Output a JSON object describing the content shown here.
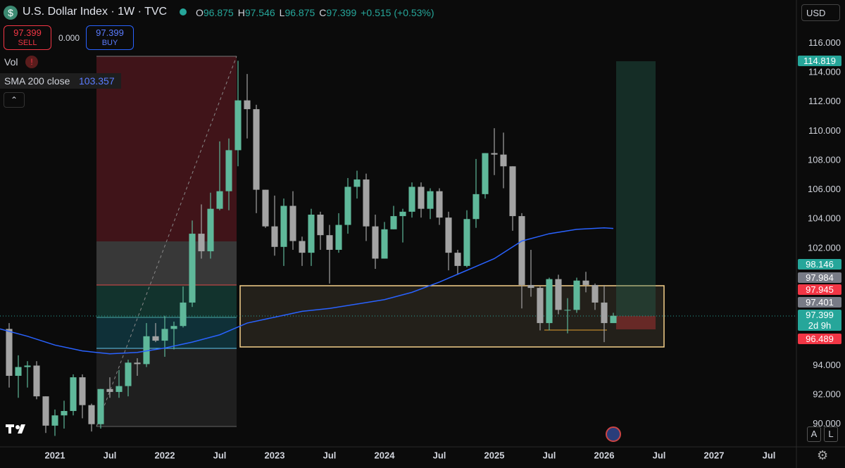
{
  "header": {
    "symbol": "U.S. Dollar Index · 1W · TVC",
    "icon": "$",
    "ohlc": [
      {
        "label": "O",
        "value": "96.875"
      },
      {
        "label": "H",
        "value": "97.546"
      },
      {
        "label": "L",
        "value": "96.875"
      },
      {
        "label": "C",
        "value": "97.399"
      }
    ],
    "change": "+0.515 (+0.53%)",
    "sell": {
      "price": "97.399",
      "label": "SELL"
    },
    "spread": "0.000",
    "buy": {
      "price": "97.399",
      "label": "BUY"
    },
    "vol": "Vol",
    "vol_alert": "!",
    "indicator": {
      "name": "SMA 200 close",
      "value": "103.357"
    },
    "currency": "USD"
  },
  "price_tags": [
    {
      "label": "114.819",
      "color": "#26a69a"
    },
    {
      "label": "98.146",
      "color": "#26a69a"
    },
    {
      "label": "97.984",
      "color": "#787b86"
    },
    {
      "label": "97.945",
      "color": "#f23645"
    },
    {
      "label": "97.401",
      "color": "#787b86"
    },
    {
      "label": "97.399",
      "sub": "2d 9h",
      "color": "#26a69a"
    },
    {
      "label": "96.489",
      "color": "#f23645"
    }
  ],
  "footer": {
    "buttons": [
      "A",
      "L"
    ]
  },
  "chart_data": {
    "type": "candlestick",
    "up_color": "#5fb89a",
    "down_color": "#a3a3a3",
    "x": [
      "2020-08",
      "2020-09",
      "2020-10",
      "2020-11",
      "2020-12",
      "2021-01",
      "2021-02",
      "2021-03",
      "2021-04",
      "2021-05",
      "2021-06",
      "2021-07",
      "2021-08",
      "2021-09",
      "2021-10",
      "2021-11",
      "2021-12",
      "2022-01",
      "2022-02",
      "2022-03",
      "2022-04",
      "2022-05",
      "2022-06",
      "2022-07",
      "2022-08",
      "2022-09",
      "2022-10",
      "2022-11",
      "2022-12",
      "2023-01",
      "2023-02",
      "2023-03",
      "2023-04",
      "2023-05",
      "2023-06",
      "2023-07",
      "2023-08",
      "2023-09",
      "2023-10",
      "2023-11",
      "2023-12",
      "2024-01",
      "2024-02",
      "2024-03",
      "2024-04",
      "2024-05",
      "2024-06",
      "2024-07",
      "2024-08",
      "2024-09",
      "2024-10",
      "2024-11",
      "2024-12",
      "2025-01",
      "2025-02",
      "2025-03",
      "2025-04",
      "2025-05",
      "2025-06",
      "2025-07",
      "2025-08",
      "2025-09",
      "2025-10",
      "2025-11",
      "2025-12",
      "2026-01",
      "2026-02"
    ],
    "open": [
      96.5,
      93.3,
      93.9,
      94.0,
      91.9,
      89.9,
      90.6,
      90.9,
      93.2,
      91.3,
      90.0,
      92.4,
      92.2,
      92.6,
      94.2,
      94.1,
      96.0,
      95.7,
      96.5,
      96.7,
      98.3,
      103.0,
      101.8,
      104.7,
      105.9,
      108.7,
      112.1,
      111.5,
      106.0,
      103.5,
      102.1,
      104.9,
      102.5,
      101.7,
      104.3,
      102.9,
      101.9,
      103.6,
      106.2,
      106.7,
      103.5,
      101.3,
      103.3,
      104.2,
      104.5,
      106.2,
      104.7,
      105.9,
      104.1,
      101.7,
      100.8,
      104.0,
      105.7,
      108.5,
      108.4,
      107.6,
      104.2,
      99.5,
      99.3,
      96.9,
      99.9,
      97.8,
      97.8,
      99.8,
      99.5,
      98.3,
      96.9
    ],
    "high": [
      96.9,
      94.7,
      94.3,
      94.3,
      91.9,
      91.0,
      91.6,
      93.4,
      93.4,
      91.4,
      92.4,
      93.2,
      93.7,
      94.4,
      94.5,
      96.9,
      96.9,
      97.4,
      97.0,
      99.4,
      103.9,
      105.0,
      105.8,
      109.3,
      109.5,
      114.8,
      113.9,
      111.8,
      106.0,
      105.6,
      105.4,
      105.9,
      102.8,
      104.7,
      104.5,
      103.6,
      104.4,
      106.8,
      107.3,
      107.1,
      104.3,
      103.8,
      104.9,
      104.7,
      106.5,
      106.5,
      106.1,
      106.1,
      104.5,
      101.9,
      104.6,
      108.1,
      108.5,
      110.2,
      109.9,
      107.6,
      104.4,
      101.9,
      99.4,
      100.0,
      100.2,
      98.6,
      100.0,
      100.4,
      99.6,
      99.5,
      97.6
    ],
    "low": [
      92.5,
      91.8,
      92.5,
      91.7,
      89.4,
      89.2,
      89.7,
      90.6,
      90.4,
      89.5,
      89.7,
      91.8,
      91.8,
      91.9,
      93.3,
      93.9,
      95.6,
      94.6,
      95.1,
      96.6,
      98.0,
      101.3,
      101.3,
      104.6,
      104.6,
      107.6,
      109.5,
      104.4,
      103.4,
      101.5,
      100.8,
      101.9,
      100.8,
      100.8,
      101.9,
      99.6,
      101.7,
      103.0,
      105.4,
      102.5,
      100.6,
      101.3,
      103.3,
      102.4,
      104.1,
      104.1,
      104.0,
      103.6,
      100.5,
      100.2,
      100.7,
      103.4,
      105.4,
      107.0,
      106.1,
      103.2,
      97.9,
      98.7,
      96.4,
      96.4,
      97.5,
      96.2,
      97.6,
      99.0,
      97.8,
      95.6,
      96.9
    ],
    "close": [
      93.3,
      93.9,
      94.0,
      91.9,
      89.9,
      90.6,
      90.9,
      93.2,
      91.3,
      90.0,
      92.4,
      92.2,
      92.6,
      94.2,
      94.1,
      96.0,
      95.7,
      96.5,
      96.7,
      98.3,
      103.0,
      101.8,
      104.7,
      105.9,
      108.7,
      112.1,
      111.5,
      106.0,
      103.5,
      102.1,
      104.9,
      102.5,
      101.7,
      104.3,
      102.9,
      101.9,
      103.6,
      106.2,
      106.7,
      103.5,
      101.3,
      103.3,
      104.2,
      104.5,
      106.2,
      104.7,
      105.9,
      104.1,
      101.7,
      100.8,
      104.0,
      105.7,
      108.5,
      108.4,
      107.6,
      104.2,
      99.5,
      99.3,
      96.9,
      99.9,
      97.8,
      97.8,
      99.8,
      99.5,
      98.3,
      96.9,
      97.399
    ],
    "overlay": {
      "name": "SMA 200 close",
      "color": "#2962ff",
      "x": [
        "2020-07",
        "2020-10",
        "2021-01",
        "2021-04",
        "2021-07",
        "2021-10",
        "2022-01",
        "2022-04",
        "2022-07",
        "2022-10",
        "2023-01",
        "2023-04",
        "2023-07",
        "2023-10",
        "2024-01",
        "2024-04",
        "2024-07",
        "2024-10",
        "2025-01",
        "2025-04",
        "2025-07",
        "2025-10",
        "2026-01",
        "2026-02"
      ],
      "values": [
        96.5,
        96.0,
        95.4,
        95.0,
        94.8,
        94.9,
        95.2,
        95.6,
        96.1,
        96.9,
        97.3,
        97.7,
        97.9,
        98.2,
        98.5,
        99.0,
        99.7,
        100.5,
        101.3,
        102.5,
        103.0,
        103.3,
        103.4,
        103.357
      ]
    },
    "xlim": [
      "2020-07",
      "2027-10"
    ],
    "xticks": [
      {
        "value": "2021-01",
        "label": "2021"
      },
      {
        "value": "2021-07",
        "label": "Jul"
      },
      {
        "value": "2022-01",
        "label": "2022"
      },
      {
        "value": "2022-07",
        "label": "Jul"
      },
      {
        "value": "2023-01",
        "label": "2023"
      },
      {
        "value": "2023-07",
        "label": "Jul"
      },
      {
        "value": "2024-01",
        "label": "2024"
      },
      {
        "value": "2024-07",
        "label": "Jul"
      },
      {
        "value": "2025-01",
        "label": "2025"
      },
      {
        "value": "2025-07",
        "label": "Jul"
      },
      {
        "value": "2026-01",
        "label": "2026"
      },
      {
        "value": "2026-07",
        "label": "Jul"
      },
      {
        "value": "2027-01",
        "label": "2027"
      },
      {
        "value": "2027-07",
        "label": "Jul"
      }
    ],
    "ylim": [
      88.45,
      118.95
    ],
    "yticks": [
      {
        "value": 90,
        "label": "90.000"
      },
      {
        "value": 92,
        "label": "92.000"
      },
      {
        "value": 94,
        "label": "94.000"
      },
      {
        "value": 102,
        "label": "102.000"
      },
      {
        "value": 104,
        "label": "104.000"
      },
      {
        "value": 106,
        "label": "106.000"
      },
      {
        "value": 108,
        "label": "108.000"
      },
      {
        "value": 110,
        "label": "110.000"
      },
      {
        "value": 112,
        "label": "112.000"
      },
      {
        "value": 114,
        "label": "114.000"
      },
      {
        "value": 116,
        "label": "116.000"
      }
    ],
    "grid": false
  }
}
